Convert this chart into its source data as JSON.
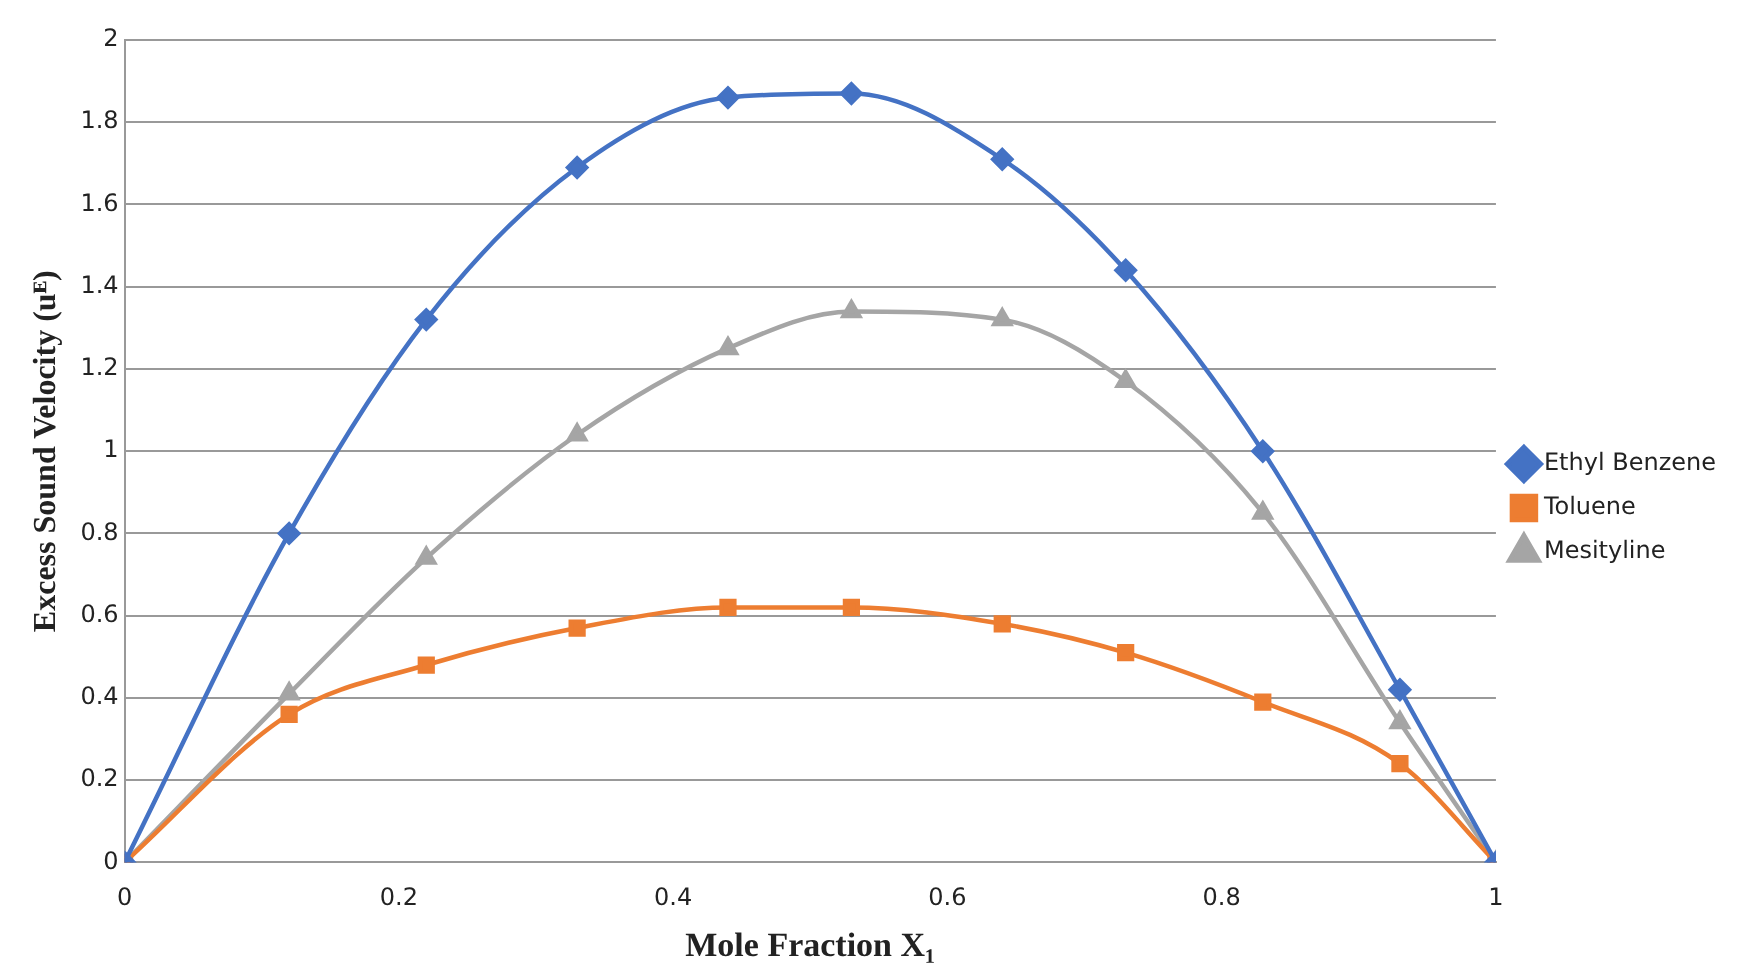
{
  "chart_data": {
    "type": "line",
    "xlabel": "Mole Fraction X₁",
    "ylabel": "Excess Sound Velocity (uᴱ)",
    "x": [
      0,
      0.12,
      0.22,
      0.33,
      0.44,
      0.53,
      0.64,
      0.73,
      0.83,
      0.93,
      1
    ],
    "xlim": [
      0,
      1
    ],
    "xticks": [
      0,
      0.2,
      0.4,
      0.6,
      0.8,
      1
    ],
    "ylim": [
      0,
      2
    ],
    "yticks": [
      0,
      0.2,
      0.4,
      0.6,
      0.8,
      1,
      1.2,
      1.4,
      1.6,
      1.8,
      2
    ],
    "grid": "y",
    "legend": "right",
    "line_style": "solid",
    "series": [
      {
        "name": "Ethyl Benzene",
        "color": "#4472c4",
        "marker": "diamond",
        "values": [
          0,
          0.8,
          1.32,
          1.69,
          1.86,
          1.87,
          1.71,
          1.44,
          1.0,
          0.42,
          0
        ]
      },
      {
        "name": "Toluene",
        "color": "#ed7d31",
        "marker": "square",
        "values": [
          0,
          0.36,
          0.48,
          0.57,
          0.62,
          0.62,
          0.58,
          0.51,
          0.39,
          0.24,
          0
        ]
      },
      {
        "name": "Mesityline",
        "color": "#a5a5a5",
        "marker": "triangle",
        "values": [
          0,
          0.41,
          0.74,
          1.04,
          1.25,
          1.34,
          1.32,
          1.17,
          0.85,
          0.34,
          0
        ]
      }
    ]
  }
}
